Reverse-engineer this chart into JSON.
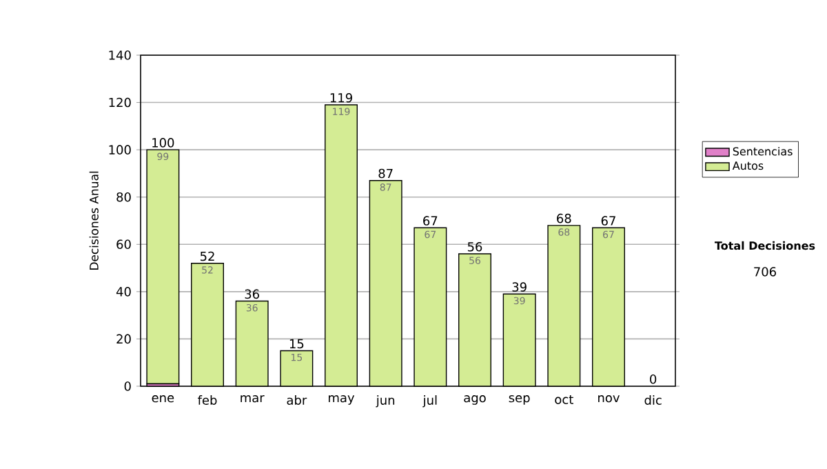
{
  "chart_data": {
    "type": "bar",
    "stacked": true,
    "ylabel": "Decisiones Anual",
    "categories": [
      "ene",
      "feb",
      "mar",
      "abr",
      "may",
      "jun",
      "jul",
      "ago",
      "sep",
      "oct",
      "nov",
      "dic"
    ],
    "series": [
      {
        "name": "Sentencias",
        "color": "#e080c8",
        "values": [
          1,
          0,
          0,
          0,
          0,
          0,
          0,
          0,
          0,
          0,
          0,
          0
        ]
      },
      {
        "name": "Autos",
        "color": "#d4ec94",
        "values": [
          99,
          52,
          36,
          15,
          119,
          87,
          67,
          56,
          39,
          68,
          67,
          0
        ],
        "value_labels": [
          "99",
          "52",
          "36",
          "15",
          "119",
          "87",
          "67",
          "56",
          "39",
          "68",
          "67",
          null
        ]
      }
    ],
    "totals": [
      "100",
      "52",
      "36",
      "15",
      "119",
      "87",
      "67",
      "56",
      "39",
      "68",
      "67",
      "0"
    ],
    "ylim": [
      0,
      140
    ],
    "yticks": [
      0,
      20,
      40,
      60,
      80,
      100,
      120,
      140
    ],
    "grid": "y",
    "legend": "right",
    "annotations": [
      "Total Decisiones",
      "706"
    ]
  }
}
